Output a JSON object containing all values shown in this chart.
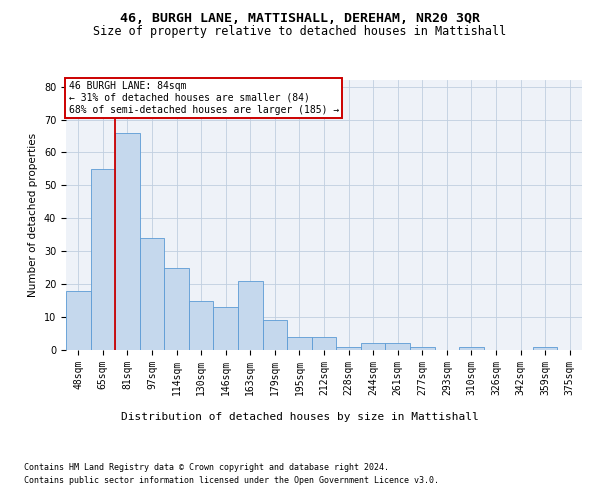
{
  "title1": "46, BURGH LANE, MATTISHALL, DEREHAM, NR20 3QR",
  "title2": "Size of property relative to detached houses in Mattishall",
  "xlabel": "Distribution of detached houses by size in Mattishall",
  "ylabel": "Number of detached properties",
  "categories": [
    "48sqm",
    "65sqm",
    "81sqm",
    "97sqm",
    "114sqm",
    "130sqm",
    "146sqm",
    "163sqm",
    "179sqm",
    "195sqm",
    "212sqm",
    "228sqm",
    "244sqm",
    "261sqm",
    "277sqm",
    "293sqm",
    "310sqm",
    "326sqm",
    "342sqm",
    "359sqm",
    "375sqm"
  ],
  "values": [
    18,
    55,
    66,
    34,
    25,
    15,
    13,
    21,
    9,
    4,
    4,
    1,
    2,
    2,
    1,
    0,
    1,
    0,
    0,
    1,
    0
  ],
  "bar_color": "#c5d8ed",
  "bar_edge_color": "#5b9bd5",
  "property_line_x": 1.5,
  "annotation_line1": "46 BURGH LANE: 84sqm",
  "annotation_line2": "← 31% of detached houses are smaller (84)",
  "annotation_line3": "68% of semi-detached houses are larger (185) →",
  "annotation_box_color": "#ffffff",
  "annotation_box_edge": "#cc0000",
  "red_line_color": "#cc0000",
  "grid_color": "#c0cfe0",
  "background_color": "#eef2f8",
  "ylim": [
    0,
    82
  ],
  "yticks": [
    0,
    10,
    20,
    30,
    40,
    50,
    60,
    70,
    80
  ],
  "footer_line1": "Contains HM Land Registry data © Crown copyright and database right 2024.",
  "footer_line2": "Contains public sector information licensed under the Open Government Licence v3.0.",
  "title1_fontsize": 9.5,
  "title2_fontsize": 8.5,
  "xlabel_fontsize": 8,
  "ylabel_fontsize": 7.5,
  "tick_fontsize": 7,
  "footer_fontsize": 6,
  "annotation_fontsize": 7
}
